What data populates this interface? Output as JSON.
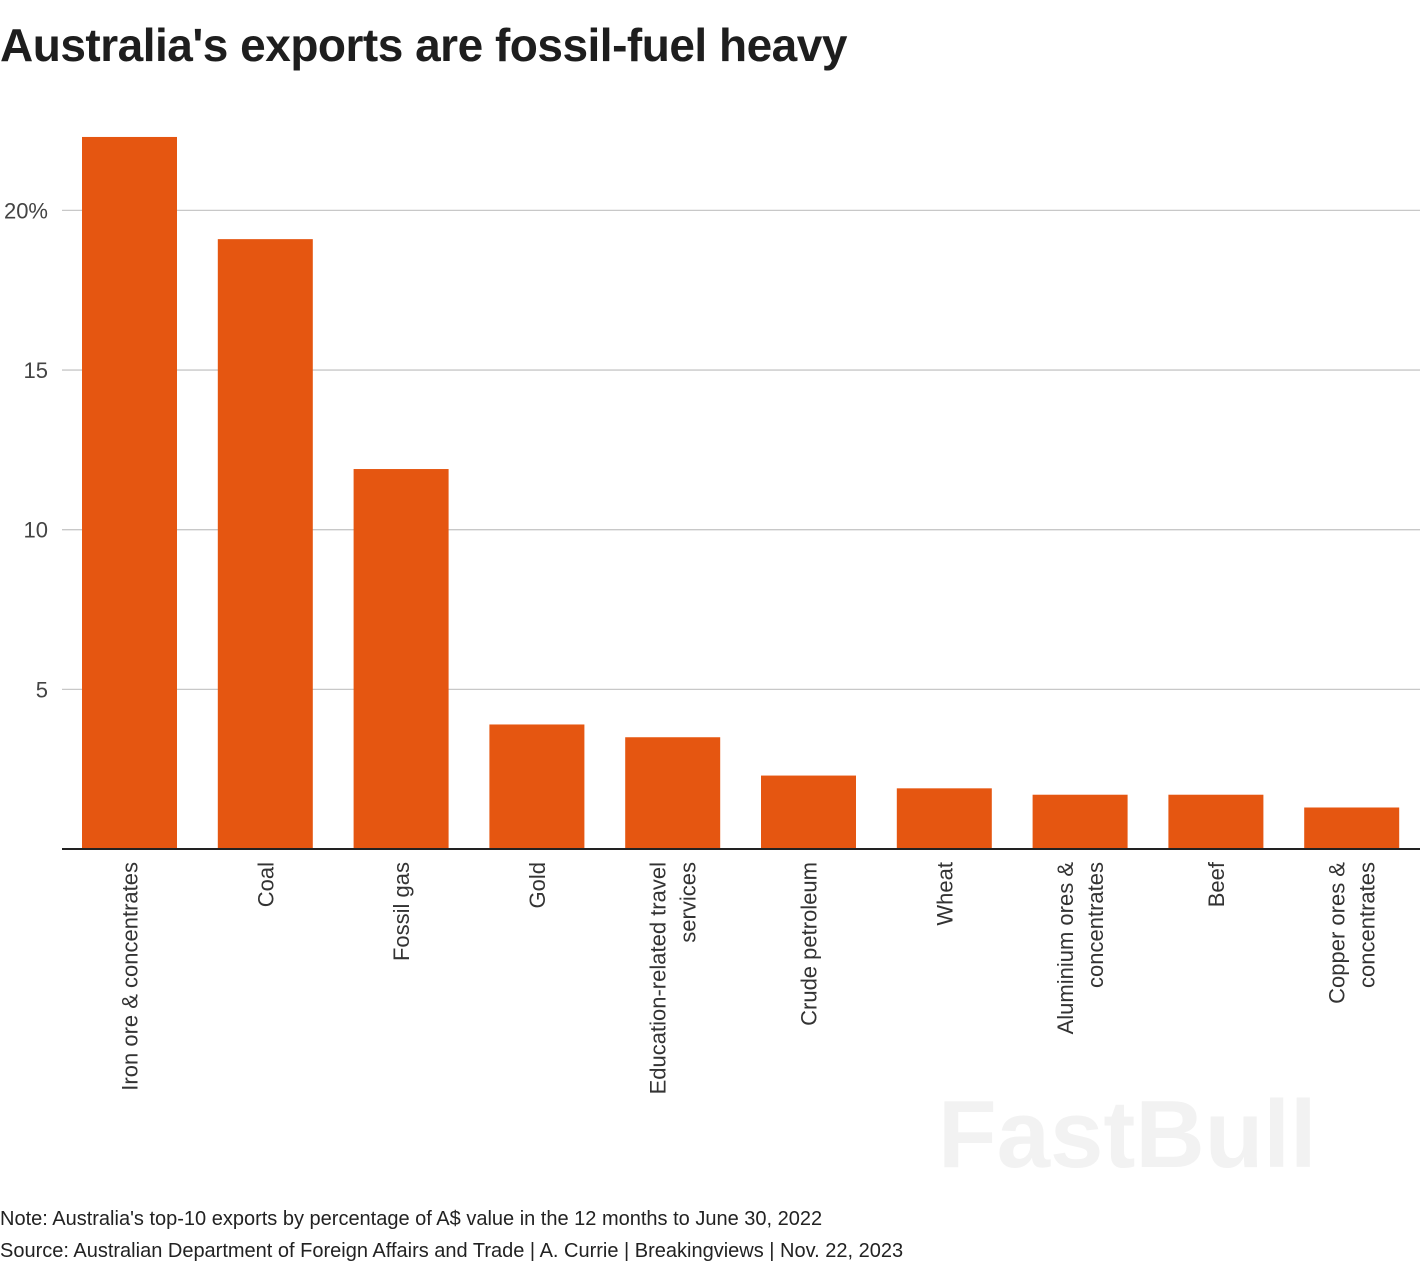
{
  "title": "Australia's exports are fossil-fuel heavy",
  "note": "Note: Australia's top-10 exports by percentage of A$ value in the 12 months to June 30, 2022",
  "source": "Source: Australian Department of Foreign Affairs and Trade | A. Currie | Breakingviews | Nov. 22, 2023",
  "watermark": "FastBull",
  "chart_data": {
    "type": "bar",
    "title": "Australia's exports are fossil-fuel heavy",
    "xlabel": "",
    "ylabel": "",
    "ylim": [
      0,
      22.5
    ],
    "yticks": [
      5,
      10,
      15,
      20
    ],
    "ytick_labels": [
      "5",
      "10",
      "15",
      "20%"
    ],
    "grid": true,
    "bar_color": "#e55611",
    "categories": [
      [
        "Iron ore & concentrates"
      ],
      [
        "Coal"
      ],
      [
        "Fossil gas"
      ],
      [
        "Gold"
      ],
      [
        "Education-related travel",
        "services"
      ],
      [
        "Crude petroleum"
      ],
      [
        "Wheat"
      ],
      [
        "Aluminium ores &",
        "concentrates"
      ],
      [
        "Beef"
      ],
      [
        "Copper ores &",
        "concentrates"
      ]
    ],
    "values": [
      22.3,
      19.1,
      11.9,
      3.9,
      3.5,
      2.3,
      1.9,
      1.7,
      1.7,
      1.3
    ]
  }
}
